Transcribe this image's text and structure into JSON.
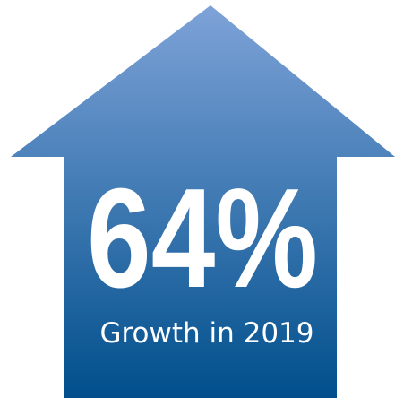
{
  "colors": {
    "arrow_top": "#7ea3d8",
    "arrow_bottom": "#004f8c",
    "text": "#ffffff",
    "background": "#ffffff"
  },
  "graphic": {
    "icon": "house-up-arrow-icon",
    "headline": "64%",
    "caption": "Growth in 2019"
  }
}
